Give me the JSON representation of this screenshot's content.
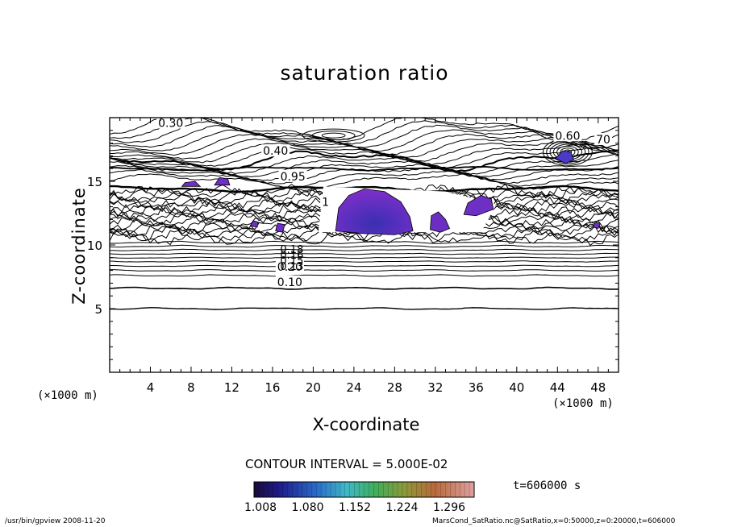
{
  "title": "saturation ratio",
  "xlabel": "X-coordinate",
  "ylabel": "Z-coordinate",
  "x_unit_left": "(×1000 m)",
  "x_unit_right": "(×1000 m)",
  "contour_interval": "CONTOUR INTERVAL = 5.000E-02",
  "time_label": "t=606000 s",
  "footer_left": "/usr/bin/gpview   2008-11-20",
  "footer_right": "MarsCond_SatRatio.nc@SatRatio,x=0:50000,z=0:20000,t=606000",
  "colors": {
    "line": "#000000",
    "background": "#ffffff",
    "fill_low": "#5a2fb4",
    "fill_high": "#7a2ec8"
  },
  "chart_data": {
    "type": "contour",
    "x_ticks": [
      "4",
      "8",
      "12",
      "16",
      "20",
      "24",
      "28",
      "32",
      "36",
      "40",
      "44",
      "48"
    ],
    "y_ticks": [
      "5",
      "10",
      "15"
    ],
    "xlim": [
      0,
      50
    ],
    "ylim": [
      0,
      20
    ],
    "contour_labels": [
      {
        "text": "0.30",
        "x": 6,
        "y": 19.4
      },
      {
        "text": "0.40",
        "x": 16.3,
        "y": 17.2
      },
      {
        "text": "0.95",
        "x": 18,
        "y": 15.2
      },
      {
        "text": "0.60",
        "x": 45,
        "y": 18.4
      },
      {
        "text": "70",
        "x": 48.5,
        "y": 18.1
      },
      {
        "text": "1",
        "x": 21.2,
        "y": 13.2
      },
      {
        "text": "0.20",
        "x": 17.7,
        "y": 8.1
      },
      {
        "text": "0.10",
        "x": 17.7,
        "y": 6.9
      }
    ],
    "stacked_labels": [
      "0.18",
      "0.16",
      "0.15",
      "0.13"
    ],
    "colorbar": {
      "ticks": [
        "1.008",
        "1.080",
        "1.152",
        "1.224",
        "1.296"
      ],
      "min": 1.008,
      "max": 1.296
    }
  }
}
